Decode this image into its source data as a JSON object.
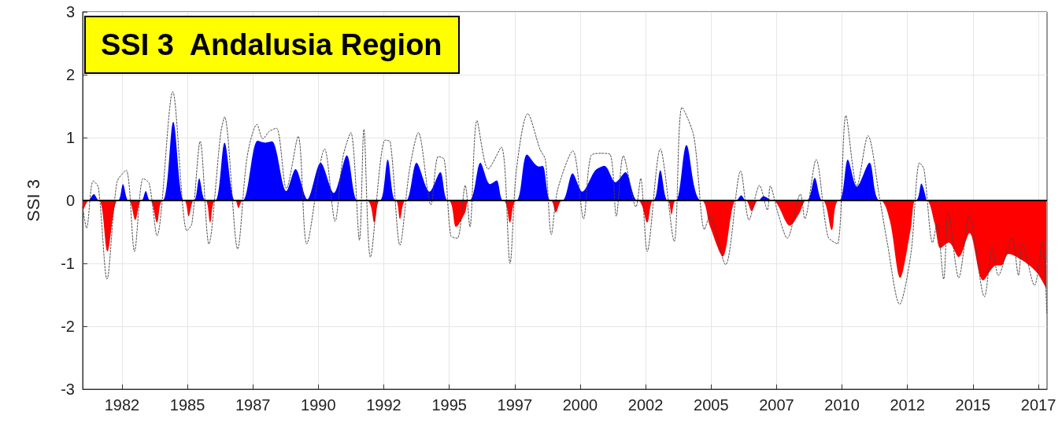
{
  "chart_data": {
    "type": "area",
    "title": "SSI 3  Andalusia Region",
    "ylabel": "SSI 3",
    "xlim": [
      1981.0,
      2017.83
    ],
    "xticks": [
      {
        "value": 1982.5,
        "label": "1982"
      },
      {
        "value": 1985,
        "label": "1985"
      },
      {
        "value": 1987.5,
        "label": "1987"
      },
      {
        "value": 1990,
        "label": "1990"
      },
      {
        "value": 1992.5,
        "label": "1992"
      },
      {
        "value": 1995,
        "label": "1995"
      },
      {
        "value": 1997.5,
        "label": "1997"
      },
      {
        "value": 2000,
        "label": "2000"
      },
      {
        "value": 2002.5,
        "label": "2002"
      },
      {
        "value": 2005,
        "label": "2005"
      },
      {
        "value": 2007.5,
        "label": "2007"
      },
      {
        "value": 2010,
        "label": "2010"
      },
      {
        "value": 2012.5,
        "label": "2012"
      },
      {
        "value": 2015,
        "label": "2015"
      },
      {
        "value": 2017.5,
        "label": "2017"
      }
    ],
    "ylim": [
      -3,
      3
    ],
    "yticks": [
      -3,
      -2,
      -1,
      0,
      1,
      2,
      3
    ],
    "grid": true,
    "marker": "none",
    "ref_lines": [
      {
        "axis": "y",
        "value": 0,
        "color": "#000000"
      }
    ],
    "series": [
      {
        "color": "#0000ff",
        "x": [
          1981.25,
          1981.43,
          1981.63,
          1982.34,
          1982.54,
          1982.76,
          1983.24,
          1983.41,
          1983.58,
          1984.06,
          1984.46,
          1984.87,
          1985.25,
          1985.45,
          1985.69,
          1986.07,
          1986.42,
          1986.82,
          1987.12,
          1987.68,
          1987.98,
          1988.23,
          1988.78,
          1989.13,
          1989.58,
          1990.09,
          1990.59,
          1991.09,
          1991.49,
          1991.84,
          1992.35,
          1992.65,
          1992.95,
          1993.35,
          1993.75,
          1994.25,
          1994.66,
          1994.96,
          1995.76,
          1996.19,
          1996.56,
          1996.81,
          1997.06,
          1997.57,
          1997.97,
          1998.42,
          1998.57,
          1998.87,
          1999.32,
          1999.71,
          2000.08,
          2000.58,
          2000.93,
          2001.35,
          2001.73,
          2002.19,
          2002.79,
          2003.06,
          2003.34,
          2003.66,
          2004.06,
          2004.63,
          2005.95,
          2006.15,
          2006.33,
          2006.8,
          2007.0,
          2007.36,
          2008.64,
          2008.96,
          2009.26,
          2009.89,
          2010.22,
          2010.57,
          2011.05,
          2011.45,
          2012.81,
          2013.03,
          2013.23
        ],
        "values": [
          0,
          0.1,
          0,
          0,
          0.26,
          0,
          0,
          0.15,
          0,
          0,
          1.25,
          0,
          0,
          0.35,
          0,
          0,
          0.92,
          0,
          0,
          0.95,
          0.92,
          0.94,
          0.15,
          0.5,
          0.02,
          0.6,
          0.12,
          0.72,
          0,
          0,
          0,
          0.65,
          0,
          0,
          0.6,
          0.14,
          0.45,
          0,
          0,
          0.6,
          0.26,
          0.32,
          0,
          0,
          0.73,
          0.54,
          0.55,
          0,
          0,
          0.43,
          0.14,
          0.48,
          0.55,
          0.29,
          0.45,
          0,
          0,
          0.48,
          0,
          0,
          0.88,
          0,
          0,
          0.08,
          0,
          0,
          0.07,
          0,
          0,
          0.36,
          0,
          0,
          0.65,
          0.22,
          0.6,
          0,
          0,
          0.27,
          0
        ]
      },
      {
        "color": "#ff0000",
        "x": [
          1981.0,
          1981.25,
          1981.63,
          1981.95,
          1982.34,
          1982.76,
          1983.01,
          1983.24,
          1983.58,
          1983.84,
          1984.06,
          1984.87,
          1985.05,
          1985.25,
          1985.69,
          1985.87,
          1986.07,
          1986.82,
          1986.95,
          1987.12,
          1991.84,
          1992.14,
          1992.35,
          1992.95,
          1993.12,
          1993.35,
          1994.96,
          1995.26,
          1995.61,
          1995.76,
          1997.06,
          1997.32,
          1997.57,
          1998.87,
          1999.07,
          1999.32,
          2002.19,
          2002.56,
          2002.79,
          2003.34,
          2003.49,
          2003.66,
          2004.63,
          2004.95,
          2005.45,
          2005.95,
          2006.33,
          2006.55,
          2006.8,
          2007.36,
          2008.01,
          2008.36,
          2008.64,
          2009.26,
          2009.61,
          2009.89,
          2011.45,
          2011.82,
          2012.22,
          2012.63,
          2012.81,
          2013.23,
          2013.53,
          2013.76,
          2014.08,
          2014.46,
          2014.87,
          2015.39,
          2015.89,
          2016.09,
          2016.36,
          2016.99,
          2017.45,
          2017.8
        ],
        "values": [
          -0.19,
          0,
          0,
          -0.81,
          0,
          0,
          -0.31,
          0,
          0,
          -0.35,
          0,
          0,
          -0.25,
          0,
          0,
          -0.35,
          0,
          0,
          -0.12,
          0,
          0,
          -0.35,
          0,
          0,
          -0.29,
          0,
          0,
          -0.42,
          -0.19,
          0,
          0,
          -0.35,
          0,
          0,
          -0.19,
          0,
          0,
          -0.35,
          0,
          0,
          -0.22,
          0,
          0,
          -0.4,
          -0.89,
          0,
          0,
          -0.17,
          0,
          0,
          -0.4,
          -0.21,
          0,
          0,
          -0.47,
          0,
          0,
          -0.31,
          -1.23,
          -0.44,
          0,
          0,
          -0.35,
          -0.76,
          -0.67,
          -0.9,
          -0.52,
          -1.27,
          -1.03,
          -1.03,
          -0.85,
          -0.98,
          -1.15,
          -1.4
        ]
      },
      {
        "type": "line",
        "color": "#444444",
        "line_style": "dotted",
        "x": [
          1981.0,
          1981.15,
          1981.4,
          1981.6,
          1981.93,
          1982.31,
          1982.66,
          1982.98,
          1983.31,
          1983.54,
          1983.84,
          1984.44,
          1984.98,
          1985.17,
          1985.49,
          1985.82,
          1986.27,
          1986.42,
          1986.92,
          1987.28,
          1987.66,
          1987.88,
          1988.13,
          1988.4,
          1988.78,
          1989.23,
          1989.56,
          1990.24,
          1990.64,
          1990.94,
          1991.24,
          1991.57,
          1991.74,
          1991.99,
          1992.55,
          1992.75,
          1993.12,
          1993.48,
          1993.82,
          1994.3,
          1994.58,
          1994.81,
          1995.06,
          1995.31,
          1995.61,
          1995.79,
          1996.06,
          1996.49,
          1996.99,
          1997.32,
          1997.57,
          1998.0,
          1998.47,
          1998.67,
          1998.9,
          1999.14,
          1999.72,
          2000.13,
          2000.41,
          2000.81,
          2001.15,
          2001.38,
          2001.65,
          2002.13,
          2002.31,
          2002.56,
          2003.06,
          2003.59,
          2003.89,
          2004.34,
          2004.75,
          2004.95,
          2005.55,
          2006.13,
          2006.45,
          2006.85,
          2007.15,
          2007.26,
          2007.56,
          2007.91,
          2008.41,
          2008.58,
          2009.01,
          2009.46,
          2009.82,
          2010.15,
          2010.57,
          2010.99,
          2011.45,
          2011.72,
          2012.2,
          2012.63,
          2012.96,
          2013.13,
          2013.46,
          2013.63,
          2013.88,
          2014.06,
          2014.46,
          2014.87,
          2015.44,
          2015.74,
          2015.97,
          2016.49,
          2016.74,
          2016.89,
          2017.35,
          2017.65,
          2017.82
        ],
        "values": [
          -0.1,
          -0.44,
          0.31,
          0.21,
          -1.25,
          0.29,
          0.48,
          -0.81,
          0.35,
          0.27,
          -0.56,
          1.73,
          -0.48,
          -0.37,
          0.94,
          -0.69,
          1.06,
          1.33,
          -0.77,
          0.69,
          1.21,
          0.98,
          1.1,
          1.15,
          0.19,
          1.02,
          -0.69,
          0.82,
          -0.33,
          0.69,
          1.08,
          -0.63,
          1.13,
          -0.9,
          0.96,
          0.93,
          -0.71,
          0.48,
          1.08,
          -0.07,
          0.7,
          0.65,
          -0.56,
          -0.6,
          0.24,
          -0.42,
          1.27,
          0.5,
          0.85,
          -1.0,
          0.5,
          1.38,
          0.81,
          0.65,
          -0.54,
          0.17,
          0.79,
          -0.29,
          0.71,
          0.75,
          0.73,
          -0.25,
          0.71,
          -0.1,
          0.35,
          -0.81,
          0.82,
          -0.65,
          1.48,
          1.02,
          -0.46,
          -0.25,
          -1.02,
          0.47,
          -0.31,
          0.24,
          -0.15,
          0.23,
          -0.21,
          -0.6,
          0.1,
          -0.29,
          0.65,
          -0.57,
          -0.69,
          1.35,
          0.23,
          1.03,
          0,
          -0.65,
          -1.65,
          -0.85,
          0.6,
          0.5,
          -0.67,
          -0.37,
          -1.25,
          -0.17,
          -1.23,
          -0.25,
          -1.53,
          -0.75,
          -1.19,
          -0.6,
          -1.19,
          -0.69,
          -1.35,
          -0.67,
          -1.79
        ]
      }
    ]
  }
}
